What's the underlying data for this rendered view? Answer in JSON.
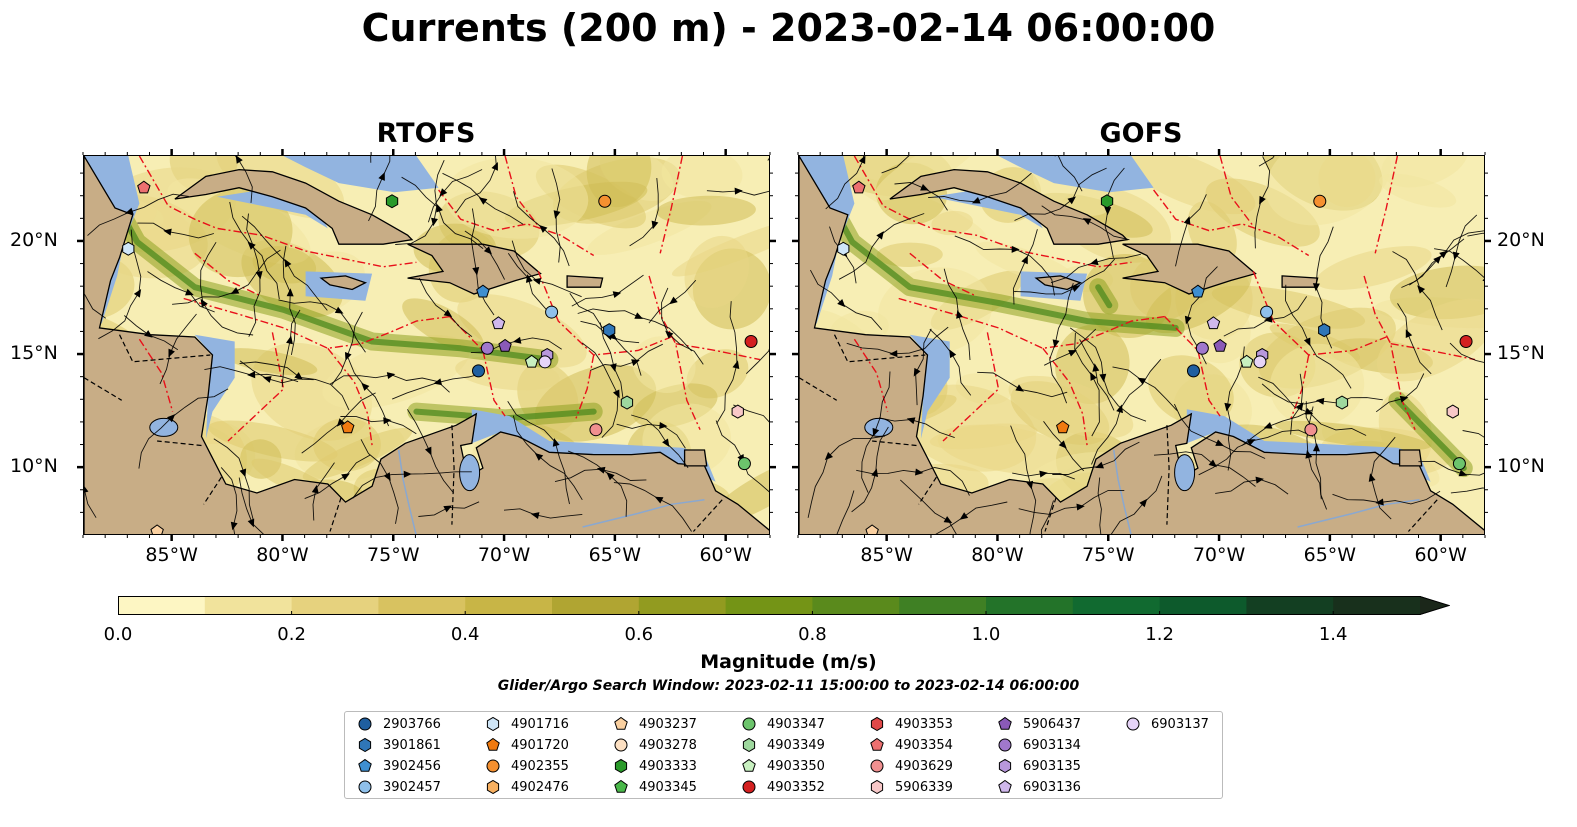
{
  "title": "Currents (200 m) - 2023-02-14 06:00:00",
  "panels": [
    {
      "title": "RTOFS"
    },
    {
      "title": "GOFS"
    }
  ],
  "lon_labels": [
    "85°W",
    "80°W",
    "75°W",
    "70°W",
    "65°W",
    "60°W"
  ],
  "lat_labels": [
    "20°N",
    "15°N",
    "10°N"
  ],
  "colorbar": {
    "label": "Magnitude (m/s)",
    "ticks": [
      "0.0",
      "0.2",
      "0.4",
      "0.6",
      "0.8",
      "1.0",
      "1.2",
      "1.4"
    ],
    "colors": [
      "#fdf6c3",
      "#f1e39c",
      "#e6d27e",
      "#d8c260",
      "#c8b546",
      "#b0a532",
      "#929b20",
      "#749416",
      "#5a8a1c",
      "#3f8024",
      "#237329",
      "#116a30",
      "#0d5a2c",
      "#133f22",
      "#18301c",
      "#1b271a"
    ]
  },
  "search_window": "Glider/Argo Search Window: 2023-02-11 15:00:00 to 2023-02-14 06:00:00",
  "legend": [
    {
      "id": "2903766",
      "shape": "circle",
      "color": "#1f5fa0"
    },
    {
      "id": "3901861",
      "shape": "hexagon",
      "color": "#2f76b8"
    },
    {
      "id": "3902456",
      "shape": "pentagon",
      "color": "#3f8fd0"
    },
    {
      "id": "3902457",
      "shape": "circle",
      "color": "#8fc0ea"
    },
    {
      "id": "4901716",
      "shape": "hexagon",
      "color": "#cfe6f8"
    },
    {
      "id": "4901720",
      "shape": "pentagon",
      "color": "#f07a10"
    },
    {
      "id": "4902355",
      "shape": "circle",
      "color": "#f59030"
    },
    {
      "id": "4902476",
      "shape": "hexagon",
      "color": "#f8b060"
    },
    {
      "id": "4903237",
      "shape": "pentagon",
      "color": "#fad0a0"
    },
    {
      "id": "4903278",
      "shape": "circle",
      "color": "#fde0c2"
    },
    {
      "id": "4903333",
      "shape": "hexagon",
      "color": "#2a9a2a"
    },
    {
      "id": "4903345",
      "shape": "pentagon",
      "color": "#4ab84a"
    },
    {
      "id": "4903347",
      "shape": "circle",
      "color": "#6cc46c"
    },
    {
      "id": "4903349",
      "shape": "hexagon",
      "color": "#9ed89e"
    },
    {
      "id": "4903350",
      "shape": "pentagon",
      "color": "#c8f0c0"
    },
    {
      "id": "4903352",
      "shape": "circle",
      "color": "#d42020"
    },
    {
      "id": "4903353",
      "shape": "hexagon",
      "color": "#e04848"
    },
    {
      "id": "4903354",
      "shape": "pentagon",
      "color": "#ec7070"
    },
    {
      "id": "4903629",
      "shape": "circle",
      "color": "#f09090"
    },
    {
      "id": "5906339",
      "shape": "hexagon",
      "color": "#f8c8c8"
    },
    {
      "id": "5906437",
      "shape": "pentagon",
      "color": "#8a5ab8"
    },
    {
      "id": "6903134",
      "shape": "circle",
      "color": "#a078cc"
    },
    {
      "id": "6903135",
      "shape": "hexagon",
      "color": "#b898dc"
    },
    {
      "id": "6903136",
      "shape": "pentagon",
      "color": "#d0b8ec"
    },
    {
      "id": "6903137",
      "shape": "circle",
      "color": "#e6d4f8"
    }
  ],
  "floats": [
    {
      "id": "2903766",
      "lon": -71.2,
      "lat": 14.3
    },
    {
      "id": "3901861",
      "lon": -65.3,
      "lat": 16.1
    },
    {
      "id": "3902456",
      "lon": -71.0,
      "lat": 17.8
    },
    {
      "id": "3902457",
      "lon": -67.9,
      "lat": 16.9
    },
    {
      "id": "4901716",
      "lon": -87.0,
      "lat": 19.7
    },
    {
      "id": "4901720",
      "lon": -77.1,
      "lat": 11.8
    },
    {
      "id": "4902355",
      "lon": -65.5,
      "lat": 21.8
    },
    {
      "id": "4903237",
      "lon": -85.7,
      "lat": 7.2
    },
    {
      "id": "4903333",
      "lon": -75.1,
      "lat": 21.8
    },
    {
      "id": "4903347",
      "lon": -59.2,
      "lat": 10.2
    },
    {
      "id": "4903349",
      "lon": -64.5,
      "lat": 12.9
    },
    {
      "id": "4903350",
      "lon": -68.8,
      "lat": 14.7
    },
    {
      "id": "4903352",
      "lon": -58.9,
      "lat": 15.6
    },
    {
      "id": "4903354",
      "lon": -86.3,
      "lat": 22.4
    },
    {
      "id": "4903629",
      "lon": -65.9,
      "lat": 11.7
    },
    {
      "id": "5906339",
      "lon": -59.5,
      "lat": 12.5
    },
    {
      "id": "5906437",
      "lon": -70.0,
      "lat": 15.4
    },
    {
      "id": "6903134",
      "lon": -70.8,
      "lat": 15.3
    },
    {
      "id": "6903135",
      "lon": -68.1,
      "lat": 15.0
    },
    {
      "id": "6903136",
      "lon": -70.3,
      "lat": 16.4
    },
    {
      "id": "6903137",
      "lon": -68.2,
      "lat": 14.7
    }
  ]
}
